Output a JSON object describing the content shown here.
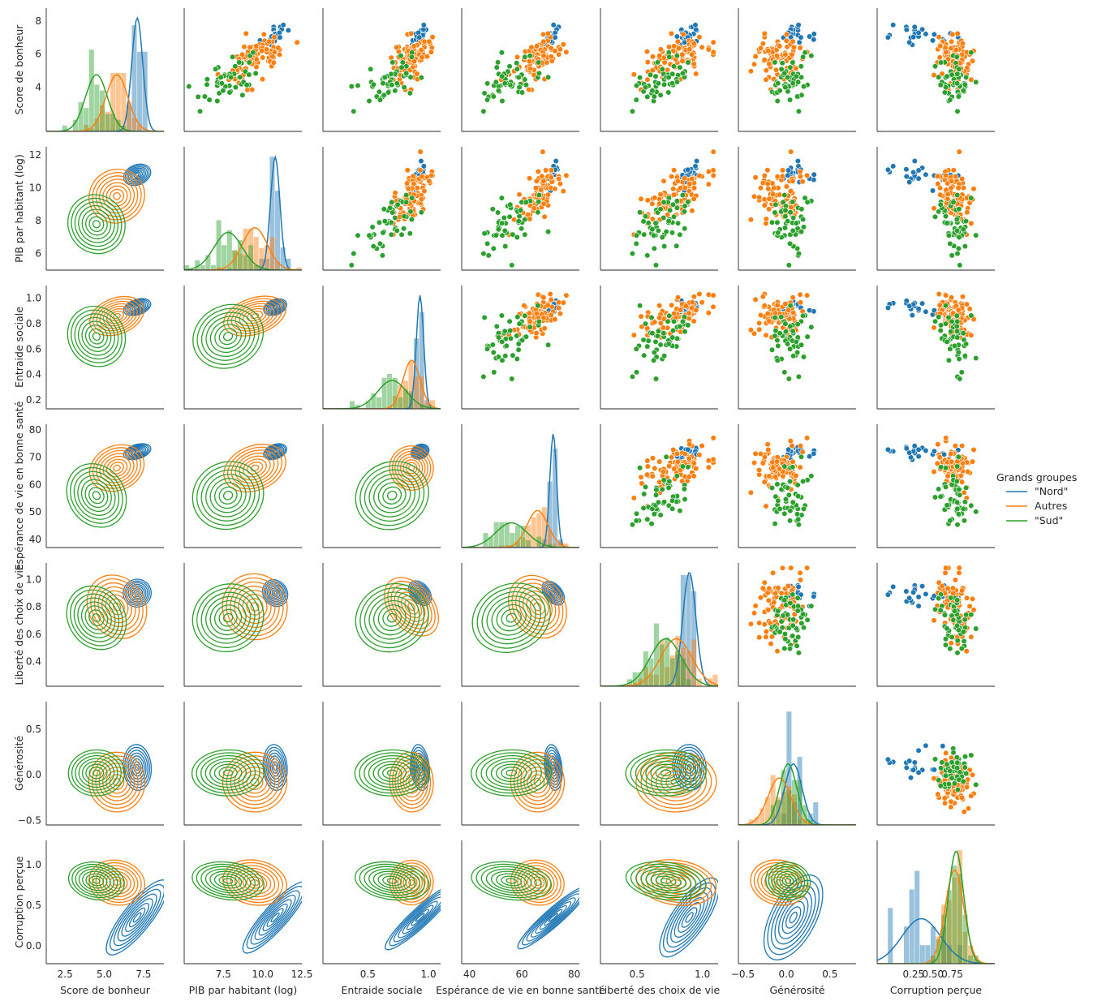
{
  "chart_data": {
    "type": "pairplot",
    "variables": [
      "Score de bonheur",
      "PIB par habitant (log)",
      "Entraide sociale",
      "Espérance de vie en bonne santé",
      "Liberté des choix de vie",
      "Générosité",
      "Corruption perçue"
    ],
    "lims": [
      [
        1.3,
        8.8
      ],
      [
        5.0,
        12.5
      ],
      [
        0.13,
        1.1
      ],
      [
        37,
        82
      ],
      [
        0.22,
        1.12
      ],
      [
        -0.55,
        0.8
      ],
      [
        -0.22,
        1.3
      ]
    ],
    "x_ticks": [
      [
        2.5,
        5.0,
        7.5
      ],
      [
        7.5,
        10.0,
        12.5
      ],
      [
        0.5,
        1.0
      ],
      [
        40,
        60,
        80
      ],
      [
        0.5,
        1.0
      ],
      [
        -0.5,
        0.0,
        0.5
      ],
      [
        0.25,
        0.5,
        0.75
      ]
    ],
    "x_tick_labels": [
      [
        "2.5",
        "5.0",
        "7.5"
      ],
      [
        "7.5",
        "10.0",
        "12.5"
      ],
      [
        "0.5",
        "1.0"
      ],
      [
        "40",
        "60",
        "80"
      ],
      [
        "0.5",
        "1.0"
      ],
      [
        "−0.5",
        "0.0",
        "0.5"
      ],
      [
        "0.25",
        "0.50",
        "0.75"
      ]
    ],
    "y_ticks": [
      [
        4,
        6,
        8
      ],
      [
        6,
        8,
        10,
        12
      ],
      [
        0.2,
        0.4,
        0.6,
        0.8,
        1.0
      ],
      [
        40,
        50,
        60,
        70,
        80
      ],
      [
        0.4,
        0.6,
        0.8,
        1.0
      ],
      [
        -0.5,
        0.0,
        0.5
      ],
      [
        0.0,
        0.5,
        1.0
      ]
    ],
    "y_tick_labels": [
      [
        "4",
        "6",
        "8"
      ],
      [
        "6",
        "8",
        "10",
        "12"
      ],
      [
        "0.2",
        "0.4",
        "0.6",
        "0.8",
        "1.0"
      ],
      [
        "40",
        "50",
        "60",
        "70",
        "80"
      ],
      [
        "0.4",
        "0.6",
        "0.8",
        "1.0"
      ],
      [
        "−0.5",
        "0.0",
        "0.5"
      ],
      [
        "0.0",
        "0.5",
        "1.0"
      ]
    ],
    "legend": {
      "title": "Grands groupes",
      "position": "right",
      "entries": [
        {
          "label": "\"Nord\"",
          "color": "#1f77b4"
        },
        {
          "label": "Autres",
          "color": "#ff7f0e"
        },
        {
          "label": "\"Sud\"",
          "color": "#2ca02c"
        }
      ]
    },
    "upper": "scatter",
    "lower": "kde",
    "diagonal": "histogram + kde",
    "groups": [
      {
        "name": "\"Nord\"",
        "color": "#1f77b4",
        "n": 22,
        "mean": [
          7.1,
          10.8,
          0.93,
          72,
          0.9,
          0.08,
          0.35
        ],
        "sd": [
          0.35,
          0.3,
          0.03,
          1.3,
          0.05,
          0.1,
          0.25
        ]
      },
      {
        "name": "Autres",
        "color": "#ff7f0e",
        "n": 90,
        "mean": [
          5.8,
          9.5,
          0.86,
          66,
          0.8,
          -0.08,
          0.78
        ],
        "sd": [
          0.7,
          0.8,
          0.07,
          4,
          0.12,
          0.13,
          0.12
        ]
      },
      {
        "name": "\"Sud\"",
        "color": "#2ca02c",
        "n": 50,
        "mean": [
          4.5,
          7.8,
          0.7,
          56,
          0.72,
          0.02,
          0.8
        ],
        "sd": [
          0.7,
          0.9,
          0.12,
          6,
          0.12,
          0.1,
          0.1
        ]
      }
    ]
  }
}
